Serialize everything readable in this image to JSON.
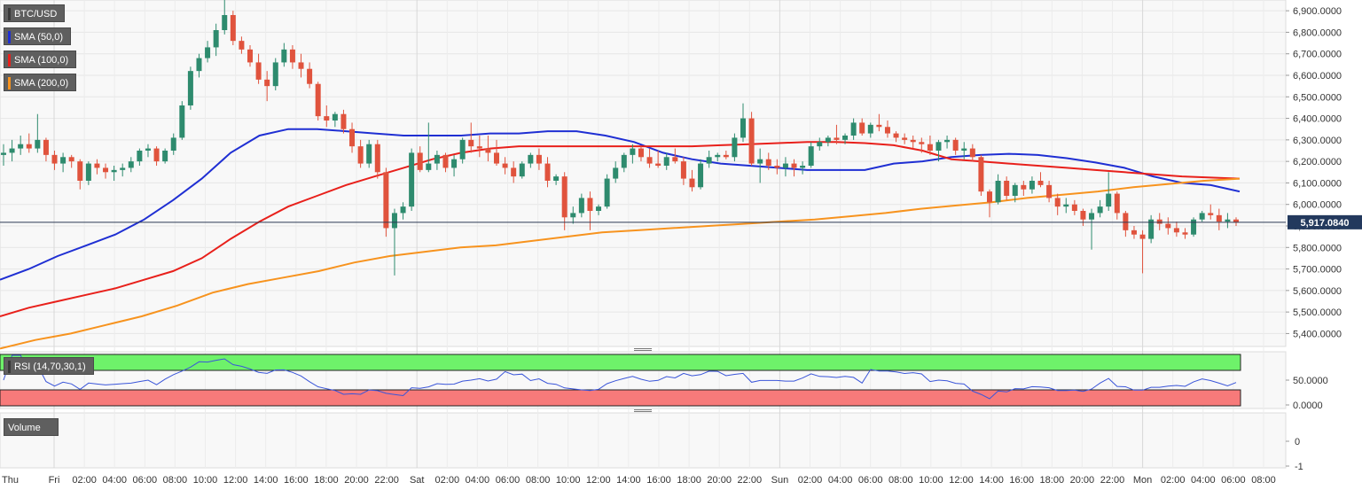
{
  "symbol": "BTC/USD",
  "indicators": [
    {
      "label": "SMA (50,0)",
      "color": "#1f2fd3"
    },
    {
      "label": "SMA (100,0)",
      "color": "#e8201b"
    },
    {
      "label": "SMA (200,0)",
      "color": "#f7931e"
    }
  ],
  "rsi_label": "RSI (14,70,30,1)",
  "volume_label": "Volume",
  "last_price": "5,917.0840",
  "colors": {
    "up": "#2e8b6e",
    "down": "#e0533d",
    "sma50": "#1f2fd3",
    "sma100": "#e8201b",
    "sma200": "#f7931e",
    "rsi_line": "#3a55d9",
    "overbought": "#6ef26a",
    "oversold": "#f77a7a"
  },
  "chart_data": {
    "type": "candlestick",
    "title": "BTC/USD",
    "price_axis": {
      "min": 5340,
      "max": 6950,
      "ticks": [
        "6,900.0000",
        "6,800.0000",
        "6,700.0000",
        "6,600.0000",
        "6,500.0000",
        "6,400.0000",
        "6,300.0000",
        "6,200.0000",
        "6,100.0000",
        "6,000.0000",
        "5,900.0000",
        "5,800.0000",
        "5,700.0000",
        "5,600.0000",
        "5,500.0000",
        "5,400.0000"
      ]
    },
    "rsi_axis": {
      "ticks": [
        "50.0000",
        "0.0000"
      ]
    },
    "volume_axis": {
      "ticks": [
        "0",
        "-1"
      ]
    },
    "time_labels": [
      "Thu",
      "Fri",
      "02:00",
      "04:00",
      "06:00",
      "08:00",
      "10:00",
      "12:00",
      "14:00",
      "16:00",
      "18:00",
      "20:00",
      "22:00",
      "Sat",
      "02:00",
      "04:00",
      "06:00",
      "08:00",
      "10:00",
      "12:00",
      "14:00",
      "16:00",
      "18:00",
      "20:00",
      "22:00",
      "Sun",
      "02:00",
      "04:00",
      "06:00",
      "08:00",
      "10:00",
      "12:00",
      "14:00",
      "16:00",
      "18:00",
      "20:00",
      "22:00",
      "Mon",
      "02:00",
      "04:00",
      "06:00",
      "08:00"
    ],
    "candles": [
      [
        6230,
        6280,
        6180,
        6240
      ],
      [
        6240,
        6300,
        6200,
        6260
      ],
      [
        6260,
        6320,
        6230,
        6280
      ],
      [
        6280,
        6330,
        6240,
        6260
      ],
      [
        6260,
        6420,
        6240,
        6300
      ],
      [
        6300,
        6310,
        6200,
        6230
      ],
      [
        6230,
        6250,
        6160,
        6190
      ],
      [
        6190,
        6240,
        6150,
        6220
      ],
      [
        6220,
        6230,
        6170,
        6200
      ],
      [
        6200,
        6210,
        6070,
        6110
      ],
      [
        6110,
        6200,
        6090,
        6190
      ],
      [
        6190,
        6210,
        6140,
        6170
      ],
      [
        6170,
        6190,
        6120,
        6150
      ],
      [
        6150,
        6180,
        6110,
        6160
      ],
      [
        6160,
        6190,
        6130,
        6170
      ],
      [
        6170,
        6220,
        6150,
        6200
      ],
      [
        6200,
        6260,
        6180,
        6250
      ],
      [
        6250,
        6280,
        6220,
        6260
      ],
      [
        6260,
        6270,
        6180,
        6200
      ],
      [
        6200,
        6260,
        6190,
        6250
      ],
      [
        6250,
        6330,
        6230,
        6310
      ],
      [
        6310,
        6480,
        6300,
        6460
      ],
      [
        6460,
        6640,
        6440,
        6620
      ],
      [
        6620,
        6700,
        6590,
        6680
      ],
      [
        6680,
        6760,
        6660,
        6730
      ],
      [
        6730,
        6840,
        6690,
        6810
      ],
      [
        6810,
        6950,
        6790,
        6880
      ],
      [
        6880,
        6900,
        6740,
        6760
      ],
      [
        6760,
        6780,
        6700,
        6720
      ],
      [
        6720,
        6740,
        6640,
        6660
      ],
      [
        6660,
        6700,
        6560,
        6580
      ],
      [
        6580,
        6620,
        6480,
        6550
      ],
      [
        6550,
        6680,
        6530,
        6660
      ],
      [
        6660,
        6750,
        6640,
        6720
      ],
      [
        6720,
        6740,
        6630,
        6660
      ],
      [
        6660,
        6700,
        6590,
        6630
      ],
      [
        6630,
        6660,
        6540,
        6560
      ],
      [
        6560,
        6570,
        6390,
        6410
      ],
      [
        6410,
        6460,
        6360,
        6390
      ],
      [
        6390,
        6430,
        6360,
        6420
      ],
      [
        6420,
        6440,
        6330,
        6350
      ],
      [
        6350,
        6380,
        6240,
        6270
      ],
      [
        6270,
        6300,
        6170,
        6190
      ],
      [
        6190,
        6300,
        6170,
        6280
      ],
      [
        6280,
        6300,
        6120,
        6150
      ],
      [
        6150,
        6170,
        5850,
        5890
      ],
      [
        5890,
        5980,
        5670,
        5960
      ],
      [
        5960,
        6010,
        5930,
        5990
      ],
      [
        5990,
        6260,
        5970,
        6240
      ],
      [
        6240,
        6270,
        6150,
        6160
      ],
      [
        6160,
        6380,
        6150,
        6190
      ],
      [
        6190,
        6250,
        6160,
        6230
      ],
      [
        6230,
        6240,
        6150,
        6170
      ],
      [
        6170,
        6230,
        6130,
        6210
      ],
      [
        6210,
        6310,
        6190,
        6300
      ],
      [
        6300,
        6380,
        6240,
        6270
      ],
      [
        6270,
        6320,
        6220,
        6260
      ],
      [
        6260,
        6320,
        6200,
        6240
      ],
      [
        6240,
        6300,
        6180,
        6190
      ],
      [
        6190,
        6220,
        6140,
        6170
      ],
      [
        6170,
        6200,
        6100,
        6130
      ],
      [
        6130,
        6200,
        6120,
        6190
      ],
      [
        6190,
        6240,
        6170,
        6230
      ],
      [
        6230,
        6260,
        6160,
        6190
      ],
      [
        6190,
        6220,
        6080,
        6110
      ],
      [
        6110,
        6140,
        6090,
        6130
      ],
      [
        6130,
        6150,
        5880,
        5940
      ],
      [
        5940,
        5990,
        5910,
        5960
      ],
      [
        5960,
        6050,
        5940,
        6030
      ],
      [
        6030,
        6060,
        5880,
        5970
      ],
      [
        5970,
        6000,
        5950,
        5990
      ],
      [
        5990,
        6140,
        5980,
        6120
      ],
      [
        6120,
        6200,
        6100,
        6170
      ],
      [
        6170,
        6240,
        6150,
        6230
      ],
      [
        6230,
        6280,
        6190,
        6260
      ],
      [
        6260,
        6270,
        6200,
        6220
      ],
      [
        6220,
        6260,
        6170,
        6190
      ],
      [
        6190,
        6250,
        6170,
        6180
      ],
      [
        6180,
        6240,
        6160,
        6220
      ],
      [
        6220,
        6260,
        6190,
        6200
      ],
      [
        6200,
        6220,
        6090,
        6120
      ],
      [
        6120,
        6160,
        6060,
        6080
      ],
      [
        6080,
        6210,
        6070,
        6190
      ],
      [
        6190,
        6250,
        6170,
        6220
      ],
      [
        6220,
        6240,
        6200,
        6230
      ],
      [
        6230,
        6250,
        6210,
        6220
      ],
      [
        6220,
        6330,
        6200,
        6310
      ],
      [
        6310,
        6470,
        6290,
        6400
      ],
      [
        6400,
        6430,
        6180,
        6190
      ],
      [
        6190,
        6260,
        6100,
        6210
      ],
      [
        6210,
        6240,
        6160,
        6180
      ],
      [
        6180,
        6210,
        6140,
        6170
      ],
      [
        6170,
        6220,
        6130,
        6190
      ],
      [
        6190,
        6210,
        6130,
        6170
      ],
      [
        6170,
        6200,
        6140,
        6180
      ],
      [
        6180,
        6290,
        6170,
        6270
      ],
      [
        6270,
        6310,
        6250,
        6290
      ],
      [
        6290,
        6320,
        6270,
        6310
      ],
      [
        6310,
        6370,
        6280,
        6300
      ],
      [
        6300,
        6330,
        6280,
        6320
      ],
      [
        6320,
        6400,
        6300,
        6380
      ],
      [
        6380,
        6400,
        6320,
        6330
      ],
      [
        6330,
        6380,
        6310,
        6370
      ],
      [
        6370,
        6420,
        6340,
        6360
      ],
      [
        6360,
        6390,
        6310,
        6330
      ],
      [
        6330,
        6340,
        6290,
        6310
      ],
      [
        6310,
        6330,
        6280,
        6300
      ],
      [
        6300,
        6320,
        6260,
        6290
      ],
      [
        6290,
        6310,
        6240,
        6280
      ],
      [
        6280,
        6320,
        6230,
        6250
      ],
      [
        6250,
        6300,
        6200,
        6290
      ],
      [
        6290,
        6320,
        6260,
        6300
      ],
      [
        6300,
        6310,
        6230,
        6250
      ],
      [
        6250,
        6290,
        6210,
        6260
      ],
      [
        6260,
        6280,
        6200,
        6220
      ],
      [
        6220,
        6230,
        6040,
        6060
      ],
      [
        6060,
        6070,
        5940,
        6010
      ],
      [
        6010,
        6140,
        6000,
        6110
      ],
      [
        6110,
        6130,
        6020,
        6040
      ],
      [
        6040,
        6100,
        6010,
        6090
      ],
      [
        6090,
        6110,
        6040,
        6070
      ],
      [
        6070,
        6130,
        6050,
        6110
      ],
      [
        6110,
        6150,
        6080,
        6090
      ],
      [
        6090,
        6110,
        6010,
        6030
      ],
      [
        6030,
        6050,
        5950,
        5990
      ],
      [
        5990,
        6030,
        5960,
        6000
      ],
      [
        6000,
        6020,
        5950,
        5970
      ],
      [
        5970,
        5980,
        5900,
        5930
      ],
      [
        5930,
        5980,
        5790,
        5960
      ],
      [
        5960,
        6020,
        5940,
        5990
      ],
      [
        5990,
        6150,
        5970,
        6050
      ],
      [
        6050,
        6060,
        5930,
        5960
      ],
      [
        5960,
        5970,
        5850,
        5880
      ],
      [
        5880,
        5900,
        5840,
        5860
      ],
      [
        5860,
        5880,
        5680,
        5840
      ],
      [
        5840,
        5950,
        5820,
        5930
      ],
      [
        5930,
        5960,
        5880,
        5910
      ],
      [
        5910,
        5940,
        5860,
        5890
      ],
      [
        5890,
        5920,
        5850,
        5870
      ],
      [
        5870,
        5890,
        5840,
        5860
      ],
      [
        5860,
        5940,
        5850,
        5930
      ],
      [
        5930,
        5970,
        5920,
        5960
      ],
      [
        5960,
        6000,
        5930,
        5950
      ],
      [
        5950,
        5980,
        5880,
        5920
      ],
      [
        5920,
        5960,
        5890,
        5930
      ],
      [
        5930,
        5940,
        5900,
        5917
      ]
    ],
    "sma50": [
      5650,
      5700,
      5760,
      5810,
      5860,
      5930,
      6020,
      6120,
      6240,
      6320,
      6350,
      6350,
      6340,
      6330,
      6320,
      6320,
      6320,
      6330,
      6330,
      6340,
      6340,
      6320,
      6290,
      6240,
      6210,
      6190,
      6180,
      6170,
      6160,
      6160,
      6160,
      6190,
      6200,
      6220,
      6230,
      6235,
      6230,
      6215,
      6195,
      6170,
      6130,
      6100,
      6090,
      6060
    ],
    "sma100": [
      5480,
      5520,
      5550,
      5580,
      5610,
      5650,
      5690,
      5750,
      5840,
      5920,
      5990,
      6040,
      6090,
      6130,
      6170,
      6210,
      6240,
      6260,
      6270,
      6270,
      6270,
      6270,
      6270,
      6270,
      6270,
      6275,
      6280,
      6285,
      6290,
      6290,
      6285,
      6275,
      6250,
      6210,
      6200,
      6190,
      6180,
      6170,
      6160,
      6150,
      6140,
      6130,
      6125,
      6120
    ],
    "sma200": [
      5330,
      5370,
      5400,
      5440,
      5480,
      5530,
      5590,
      5630,
      5660,
      5690,
      5730,
      5760,
      5780,
      5800,
      5810,
      5830,
      5850,
      5870,
      5880,
      5890,
      5900,
      5910,
      5920,
      5930,
      5945,
      5960,
      5980,
      5995,
      6010,
      6030,
      6045,
      6060,
      6080,
      6095,
      6110,
      6120
    ],
    "rsi_axis_range": [
      0,
      100
    ]
  }
}
